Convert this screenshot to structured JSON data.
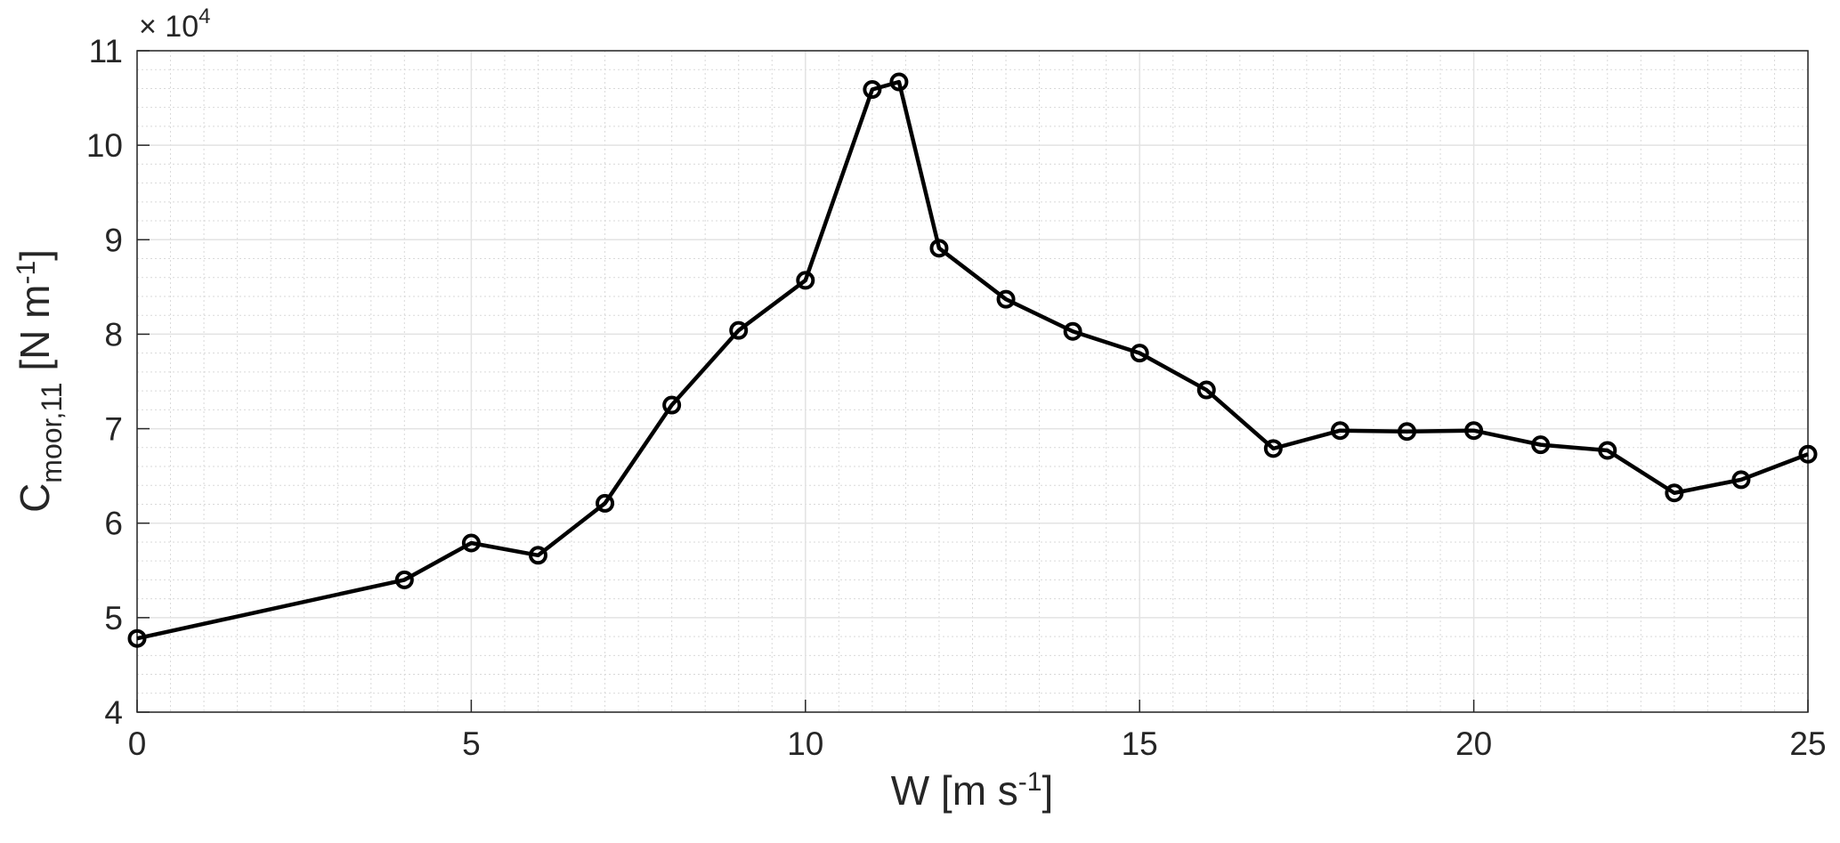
{
  "chart_data": {
    "type": "line",
    "x": [
      0,
      4,
      5,
      6,
      7,
      8,
      9,
      10,
      11,
      11.4,
      12,
      13,
      14,
      15,
      16,
      17,
      18,
      19,
      20,
      21,
      22,
      23,
      24,
      25
    ],
    "values": [
      4.78,
      5.4,
      5.79,
      5.66,
      6.21,
      7.25,
      8.04,
      8.57,
      10.59,
      10.67,
      8.91,
      8.37,
      8.03,
      7.8,
      7.41,
      6.79,
      6.98,
      6.97,
      6.98,
      6.83,
      6.77,
      6.32,
      6.46,
      6.73
    ],
    "color": "#000000",
    "xlim": [
      0,
      25
    ],
    "xticks": [
      0,
      5,
      10,
      15,
      20,
      25
    ],
    "ylim": [
      4,
      11
    ],
    "yticks": [
      4,
      5,
      6,
      7,
      8,
      9,
      10,
      11
    ],
    "grid": true,
    "minor_grid": true,
    "y_multiplier": {
      "base": "× 10",
      "exponent": "4"
    },
    "xlabel": {
      "main": "W [m s",
      "exponent": "-1",
      "close": "]"
    },
    "ylabel": {
      "main": "C",
      "subscript": "moor,11",
      "unit": " [N m",
      "exponent": "-1",
      "close": "]"
    }
  }
}
